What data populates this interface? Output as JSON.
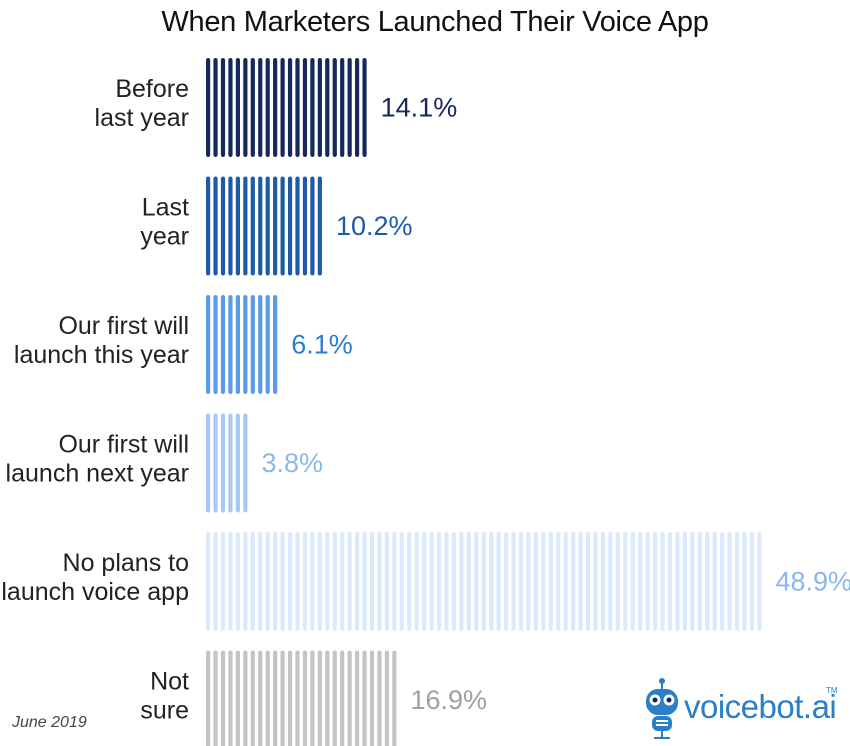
{
  "chart_data": {
    "type": "bar",
    "orientation": "horizontal",
    "title": "When Marketers Launched Their Voice App",
    "categories": [
      [
        "Before",
        "last year"
      ],
      [
        "Last",
        "year"
      ],
      [
        "Our first will",
        "launch this year"
      ],
      [
        "Our first will",
        "launch next year"
      ],
      [
        "No plans to",
        "launch voice app"
      ],
      [
        "Not",
        "sure"
      ]
    ],
    "values": [
      14.1,
      10.2,
      6.1,
      3.8,
      48.9,
      16.9
    ],
    "value_labels": [
      "14.1%",
      "10.2%",
      "6.1%",
      "3.8%",
      "48.9%",
      "16.9%"
    ],
    "colors": [
      "#15285a",
      "#1e5aa8",
      "#5b9ae6",
      "#a6c8f2",
      "#dae9fb",
      "#c4c4c4"
    ],
    "label_colors": [
      "#15285a",
      "#1e5aa8",
      "#2d7ad6",
      "#8ab8ee",
      "#8ab8ee",
      "#a0a0a0"
    ],
    "xlim": [
      0,
      48.9
    ],
    "grid": false,
    "legend": "none"
  },
  "footnote": "June 2019",
  "logo": {
    "text": "voicebot.ai",
    "tm": "TM",
    "icon": "robot-microphone-icon",
    "color": "#2a7fc7"
  }
}
